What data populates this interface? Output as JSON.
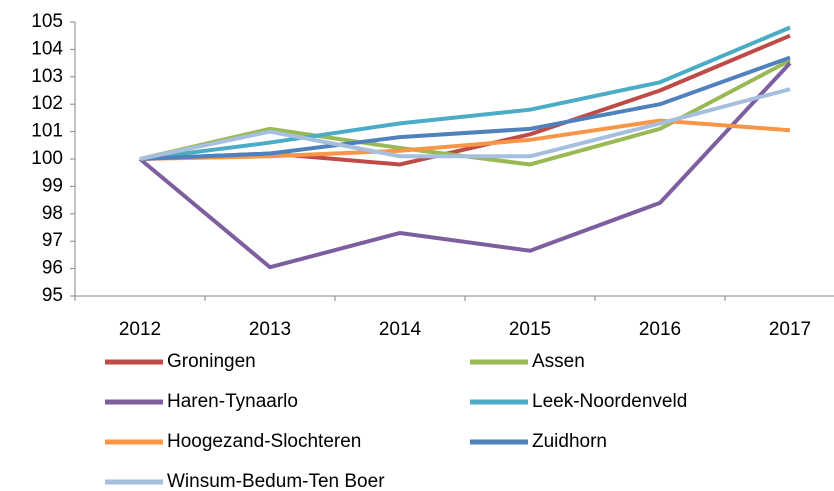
{
  "chart_data": {
    "type": "line",
    "categories": [
      "2012",
      "2013",
      "2014",
      "2015",
      "2016",
      "2017"
    ],
    "series": [
      {
        "name": "Groningen",
        "color": "#be4b48",
        "values": [
          100,
          100.2,
          99.8,
          100.9,
          102.5,
          104.5
        ]
      },
      {
        "name": "Assen",
        "color": "#98b954",
        "values": [
          100,
          101.1,
          100.4,
          99.8,
          101.1,
          103.6
        ]
      },
      {
        "name": "Haren-Tynaarlo",
        "color": "#7d5fa0",
        "values": [
          100,
          96.05,
          97.3,
          96.65,
          98.4,
          103.5
        ]
      },
      {
        "name": "Leek-Noordenveld",
        "color": "#4bacc6",
        "values": [
          100,
          100.6,
          101.3,
          101.8,
          102.8,
          104.8
        ]
      },
      {
        "name": "Hoogezand-Slochteren",
        "color": "#f79646",
        "values": [
          100,
          100.1,
          100.3,
          100.7,
          101.4,
          101.05
        ]
      },
      {
        "name": "Zuidhorn",
        "color": "#4f81bd",
        "values": [
          100,
          100.2,
          100.8,
          101.1,
          102.0,
          103.7
        ]
      },
      {
        "name": "Winsum-Bedum-Ten Boer",
        "color": "#a7bfde",
        "values": [
          100,
          101.0,
          100.1,
          100.1,
          101.3,
          102.55
        ]
      }
    ],
    "ylim": [
      95,
      105
    ],
    "yticks": [
      95,
      96,
      97,
      98,
      99,
      100,
      101,
      102,
      103,
      104,
      105
    ],
    "grid": false,
    "legend": "bottom"
  }
}
